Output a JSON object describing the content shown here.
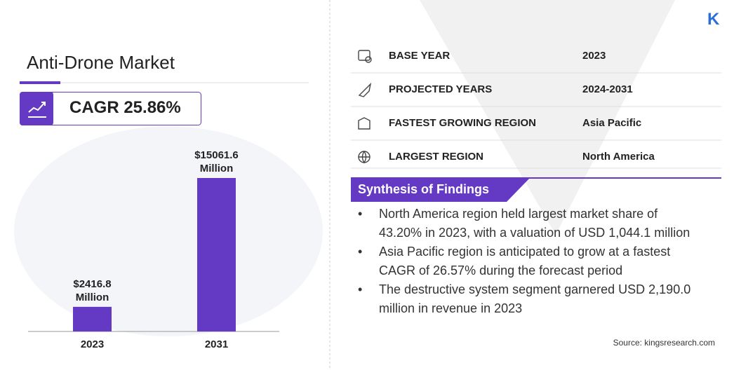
{
  "header": {
    "title": "Anti-Drone Market",
    "cagr": "CAGR 25.86%",
    "logo": "K"
  },
  "chart_data": {
    "type": "bar",
    "categories": [
      "2023",
      "2031"
    ],
    "values": [
      2416.8,
      15061.6
    ],
    "value_labels": [
      "$2416.8 Million",
      "$15061.6 Million"
    ],
    "color": "#6439c4"
  },
  "facts": [
    {
      "label": "BASE YEAR",
      "value": "2023"
    },
    {
      "label": "PROJECTED YEARS",
      "value": "2024-2031"
    },
    {
      "label": "FASTEST GROWING REGION",
      "value": "Asia Pacific"
    },
    {
      "label": "LARGEST REGION",
      "value": "North America"
    }
  ],
  "synthesis": {
    "title": "Synthesis of Findings",
    "items": [
      "North America region held largest market share of 43.20% in 2023, with a valuation of USD 1,044.1 million",
      "Asia Pacific region is anticipated to grow at a fastest CAGR of 26.57% during the forecast period",
      "The destructive system segment garnered USD 2,190.0 million in revenue in 2023"
    ]
  },
  "source": "Source: kingsresearch.com"
}
